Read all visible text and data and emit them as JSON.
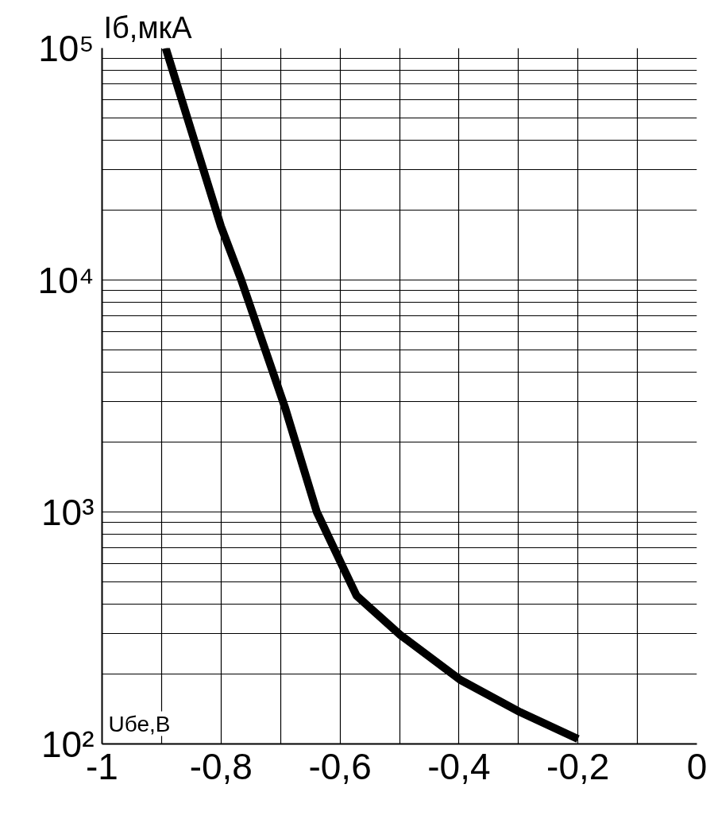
{
  "chart_data": {
    "type": "line",
    "xlabel": "Uбе,В",
    "ylabel": "Iб,мкА",
    "log": "y",
    "grid": true,
    "marker": "none",
    "line_style": "solid",
    "xlim": [
      -1,
      0
    ],
    "xticks": [
      -1,
      {
        "value": -0.9,
        "label": null
      },
      {
        "value": -0.8,
        "label": "-0,8"
      },
      {
        "value": -0.7,
        "label": null
      },
      {
        "value": -0.6,
        "label": "-0,6"
      },
      {
        "value": -0.5,
        "label": null
      },
      {
        "value": -0.4,
        "label": "-0,4"
      },
      {
        "value": -0.3,
        "label": null
      },
      {
        "value": -0.2,
        "label": "-0,2"
      },
      {
        "value": -0.1,
        "label": null
      },
      0
    ],
    "ylim": [
      100,
      100000
    ],
    "yticks": [
      {
        "value": 100,
        "label": "10²"
      },
      {
        "value": 200,
        "label": null
      },
      {
        "value": 300,
        "label": null
      },
      {
        "value": 400,
        "label": null
      },
      {
        "value": 500,
        "label": null
      },
      {
        "value": 600,
        "label": null
      },
      {
        "value": 700,
        "label": null
      },
      {
        "value": 800,
        "label": null
      },
      {
        "value": 900,
        "label": null
      },
      {
        "value": 1000,
        "label": "10³"
      },
      {
        "value": 2000,
        "label": null
      },
      {
        "value": 3000,
        "label": null
      },
      {
        "value": 4000,
        "label": null
      },
      {
        "value": 5000,
        "label": null
      },
      {
        "value": 6000,
        "label": null
      },
      {
        "value": 7000,
        "label": null
      },
      {
        "value": 8000,
        "label": null
      },
      {
        "value": 9000,
        "label": null
      },
      {
        "value": 10000,
        "label": "10⁴"
      },
      {
        "value": 20000,
        "label": null
      },
      {
        "value": 30000,
        "label": null
      },
      {
        "value": 40000,
        "label": null
      },
      {
        "value": 50000,
        "label": null
      },
      {
        "value": 60000,
        "label": null
      },
      {
        "value": 70000,
        "label": null
      },
      {
        "value": 80000,
        "label": null
      },
      {
        "value": 90000,
        "label": null
      },
      {
        "value": 100000,
        "label": "10⁵"
      }
    ],
    "series": [
      {
        "color": "#000000",
        "x": [
          -0.893,
          -0.8,
          -0.766,
          -0.692,
          -0.639,
          -0.598,
          -0.572,
          -0.498,
          -0.398,
          -0.297,
          -0.2
        ],
        "values": [
          100000,
          17000,
          10000,
          2800,
          1000,
          600,
          435,
          294,
          189,
          137,
          105
        ]
      }
    ]
  }
}
